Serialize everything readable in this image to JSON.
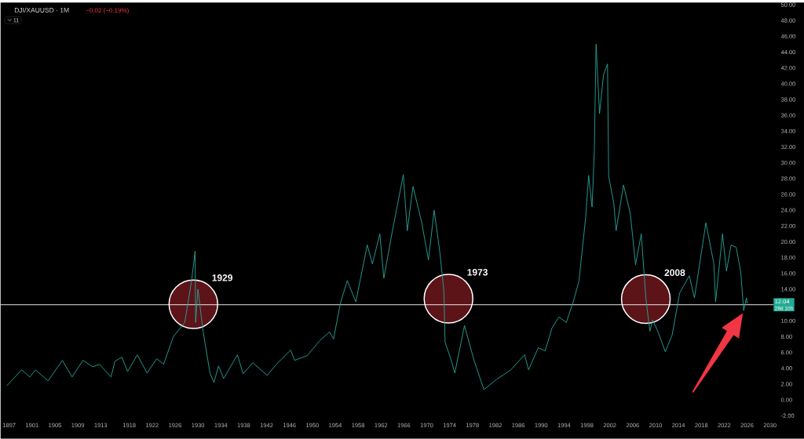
{
  "chart_data": {
    "type": "line",
    "title": "DJI/XAUUSD · 1M",
    "subtitle": "−0.02 (−0.19%)",
    "series": [
      {
        "color": "#26a69a",
        "x": [
          1896.6,
          1899.2,
          1900.6,
          1901.6,
          1903.8,
          1906.3,
          1908.0,
          1909.9,
          1911.6,
          1912.8,
          1914.8,
          1915.5,
          1916.7,
          1917.7,
          1919.4,
          1921.1,
          1922.8,
          1924.0,
          1925.7,
          1927.7,
          1928.9,
          1929.5,
          1929.6,
          1930.0,
          1930.9,
          1932.1,
          1932.8,
          1933.6,
          1934.5,
          1936.9,
          1937.9,
          1939.6,
          1942.1,
          1943.7,
          1946.2,
          1946.9,
          1949.1,
          1951.3,
          1953.0,
          1953.7,
          1954.9,
          1956.1,
          1957.6,
          1959.6,
          1960.5,
          1961.8,
          1962.5,
          1963.9,
          1965.9,
          1966.6,
          1967.6,
          1969.1,
          1970.3,
          1971.3,
          1972.3,
          1973.0,
          1973.2,
          1974.2,
          1974.9,
          1976.6,
          1978.3,
          1980.0,
          1982.2,
          1984.7,
          1987.1,
          1987.8,
          1989.5,
          1990.7,
          1991.9,
          1993.1,
          1994.4,
          1995.6,
          1996.6,
          1997.8,
          1998.3,
          1998.9,
          1999.3,
          1999.6,
          2000.2,
          2000.9,
          2001.6,
          2001.8,
          2002.7,
          2003.1,
          2004.4,
          2005.6,
          2006.5,
          2007.5,
          2008.3,
          2009.0,
          2009.5,
          2010.5,
          2011.7,
          2012.9,
          2014.2,
          2015.9,
          2016.8,
          2018.8,
          2020.2,
          2020.5,
          2021.7,
          2022.4,
          2023.2,
          2024.1,
          2024.9,
          2025.4,
          2025.9,
          2026.0
        ],
        "values": [
          1.8,
          3.8,
          2.9,
          3.8,
          2.4,
          5.0,
          2.9,
          5.0,
          4.2,
          4.5,
          2.9,
          4.9,
          5.4,
          3.6,
          5.7,
          3.4,
          5.2,
          4.5,
          8.0,
          9.8,
          15.1,
          18.8,
          9.8,
          14.0,
          8.7,
          3.4,
          2.2,
          4.3,
          2.7,
          5.7,
          3.3,
          4.7,
          3.1,
          4.5,
          6.3,
          5.0,
          5.6,
          7.5,
          8.6,
          7.7,
          12.2,
          15.1,
          12.4,
          19.6,
          17.2,
          21.0,
          15.4,
          21.0,
          28.5,
          21.4,
          27.0,
          22.5,
          17.7,
          24.0,
          18.6,
          13.7,
          7.3,
          5.2,
          3.4,
          9.4,
          4.9,
          1.3,
          2.6,
          3.8,
          5.7,
          3.8,
          6.6,
          6.2,
          9.1,
          10.5,
          9.8,
          12.4,
          15.0,
          23.2,
          28.4,
          24.4,
          31.6,
          45.0,
          36.2,
          41.1,
          42.5,
          28.3,
          24.9,
          21.4,
          27.2,
          23.5,
          17.1,
          21.0,
          12.9,
          8.7,
          10.1,
          8.5,
          6.1,
          8.2,
          13.5,
          15.7,
          12.9,
          22.4,
          17.2,
          12.4,
          21.0,
          16.3,
          19.6,
          19.3,
          16.1,
          11.3,
          12.9,
          12.2
        ]
      }
    ],
    "xlim": [
      1895.5,
      2030.6
    ],
    "ylim": [
      -2,
      50.28
    ],
    "xticks": [
      1897,
      1901,
      1905,
      1909,
      1913,
      1918,
      1922,
      1926,
      1930,
      1934,
      1938,
      1942,
      1946,
      1950,
      1954,
      1958,
      1962,
      1966,
      1970,
      1974,
      1978,
      1982,
      1986,
      1990,
      1994,
      1998,
      2002,
      2006,
      2010,
      2014,
      2018,
      2022,
      2026,
      2030
    ],
    "yticks": [
      {
        "value": -2,
        "label": "-2.00"
      },
      {
        "value": 0,
        "label": "0.00"
      },
      {
        "value": 2,
        "label": "2.00"
      },
      {
        "value": 4,
        "label": "4.00"
      },
      {
        "value": 6,
        "label": "6.00"
      },
      {
        "value": 8,
        "label": "8.00"
      },
      {
        "value": 10,
        "label": "10.00"
      },
      {
        "value": 12,
        "label": null
      },
      {
        "value": 14,
        "label": "14.00"
      },
      {
        "value": 16,
        "label": "16.00"
      },
      {
        "value": 18,
        "label": "18.00"
      },
      {
        "value": 20,
        "label": "20.00"
      },
      {
        "value": 22,
        "label": "22.00"
      },
      {
        "value": 24,
        "label": "24.00"
      },
      {
        "value": 26,
        "label": "26.00"
      },
      {
        "value": 28,
        "label": "28.00"
      },
      {
        "value": 30,
        "label": "30.00"
      },
      {
        "value": 32,
        "label": "32.00"
      },
      {
        "value": 34,
        "label": "34.00"
      },
      {
        "value": 36,
        "label": "36.00"
      },
      {
        "value": 38,
        "label": "38.00"
      },
      {
        "value": 40,
        "label": "40.00"
      },
      {
        "value": 42,
        "label": "42.00"
      },
      {
        "value": 44,
        "label": "44.00"
      },
      {
        "value": 46,
        "label": "46.00"
      },
      {
        "value": 48,
        "label": "48.00"
      },
      {
        "value": 50,
        "label": "50.00"
      }
    ],
    "ref_lines": [
      {
        "axis": "y",
        "value": 12.04,
        "label": "12.04",
        "color": "#ffffff"
      }
    ],
    "annotations": [
      "1929",
      "1973",
      "2008",
      "28d 10h",
      "11"
    ],
    "grid": false,
    "marker": "none",
    "line_style": "solid"
  }
}
